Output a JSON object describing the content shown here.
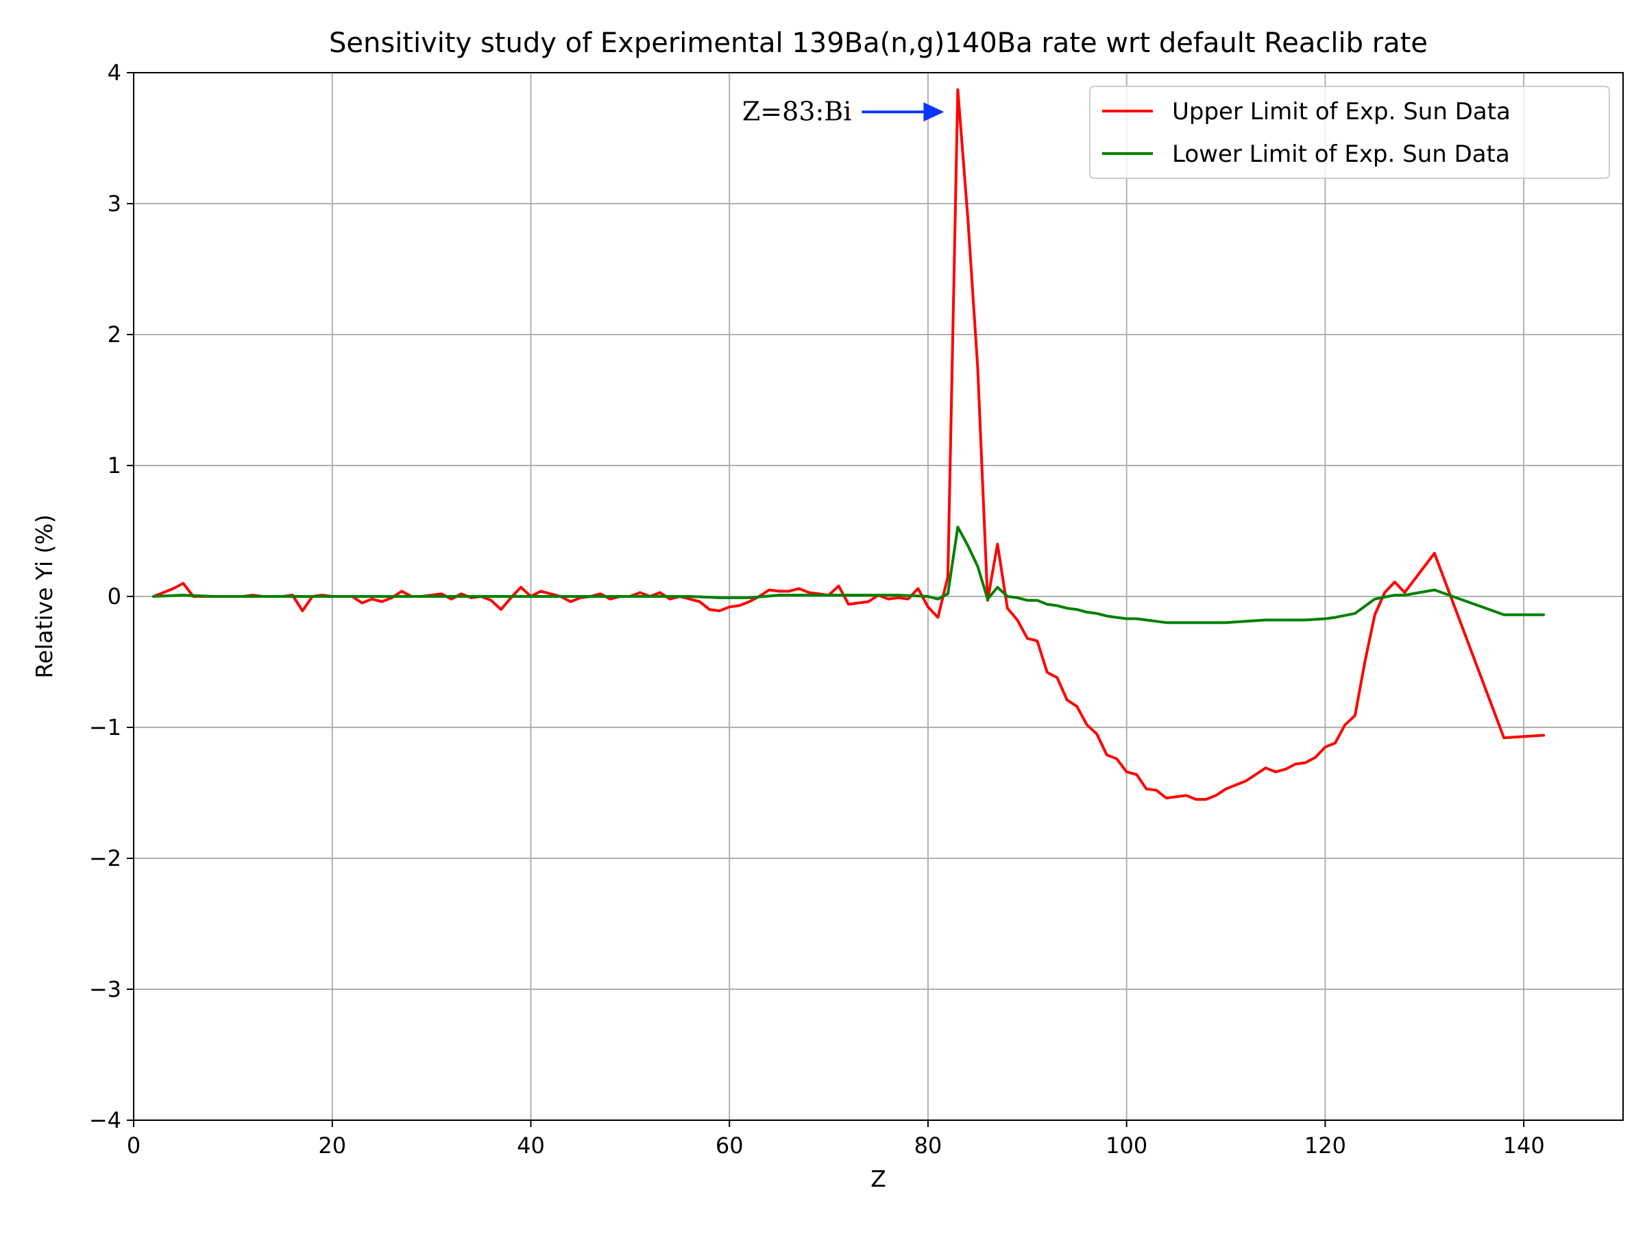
{
  "chart_data": {
    "type": "line",
    "title": "Sensitivity study of Experimental 139Ba(n,g)140Ba rate wrt default Reaclib rate",
    "xlabel": "Z",
    "ylabel": "Relative Yi (%)",
    "xlim": [
      0,
      150
    ],
    "ylim": [
      -4,
      4
    ],
    "xticks": [
      "0",
      "20",
      "40",
      "60",
      "80",
      "100",
      "120",
      "140"
    ],
    "yticks": [
      "4",
      "3",
      "2",
      "1",
      "0",
      "−1",
      "−2",
      "−3",
      "−4"
    ],
    "xtick_values": [
      0,
      20,
      40,
      60,
      80,
      100,
      120,
      140
    ],
    "ytick_values": [
      4,
      3,
      2,
      1,
      0,
      -1,
      -2,
      -3,
      -4
    ],
    "grid": true,
    "legend_position": "top-right",
    "annotation": {
      "text": "Z=83:Bi",
      "target": [
        83,
        3.7
      ],
      "arrow_color": "#0a37ff"
    },
    "series": [
      {
        "name": "Upper Limit of Exp. Sun Data",
        "color": "#ff0000",
        "x": [
          2,
          3,
          4,
          5,
          6,
          7,
          8,
          9,
          10,
          11,
          12,
          13,
          14,
          15,
          16,
          17,
          18,
          19,
          20,
          21,
          22,
          23,
          24,
          25,
          26,
          27,
          28,
          29,
          30,
          31,
          32,
          33,
          34,
          35,
          36,
          37,
          38,
          39,
          40,
          41,
          42,
          43,
          44,
          45,
          46,
          47,
          48,
          49,
          50,
          51,
          52,
          53,
          54,
          55,
          56,
          57,
          58,
          59,
          60,
          61,
          62,
          63,
          64,
          65,
          66,
          67,
          68,
          69,
          70,
          71,
          72,
          73,
          74,
          75,
          76,
          77,
          78,
          79,
          80,
          81,
          82,
          83,
          84,
          85,
          86,
          87,
          88,
          89,
          90,
          91,
          92,
          93,
          94,
          95,
          96,
          97,
          98,
          99,
          100,
          101,
          102,
          103,
          104,
          105,
          106,
          107,
          108,
          109,
          110,
          111,
          112,
          113,
          114,
          115,
          116,
          117,
          118,
          119,
          120,
          121,
          122,
          123,
          124,
          125,
          126,
          127,
          128,
          131,
          138,
          140,
          142
        ],
        "y": [
          0,
          0.03,
          0.06,
          0.1,
          0,
          0,
          0,
          0,
          0,
          0,
          0.01,
          0,
          0,
          0,
          0.01,
          -0.11,
          0,
          0.01,
          0,
          0,
          0,
          -0.05,
          -0.02,
          -0.04,
          -0.01,
          0.04,
          0,
          0,
          0.01,
          0.02,
          -0.02,
          0.02,
          -0.01,
          0,
          -0.03,
          -0.1,
          -0.01,
          0.07,
          0,
          0.04,
          0.02,
          0,
          -0.04,
          -0.01,
          0,
          0.02,
          -0.02,
          0,
          0,
          0.03,
          0,
          0.03,
          -0.02,
          0,
          -0.02,
          -0.04,
          -0.1,
          -0.11,
          -0.08,
          -0.07,
          -0.04,
          0,
          0.05,
          0.04,
          0.04,
          0.06,
          0.03,
          0.02,
          0.01,
          0.08,
          -0.06,
          -0.05,
          -0.04,
          0.01,
          -0.02,
          -0.01,
          -0.02,
          0.06,
          -0.08,
          -0.16,
          0.15,
          3.87,
          2.9,
          1.75,
          -0.03,
          0.4,
          -0.09,
          -0.18,
          -0.32,
          -0.34,
          -0.58,
          -0.62,
          -0.79,
          -0.84,
          -0.98,
          -1.05,
          -1.21,
          -1.24,
          -1.34,
          -1.36,
          -1.47,
          -1.48,
          -1.54,
          -1.53,
          -1.52,
          -1.55,
          -1.55,
          -1.52,
          -1.47,
          -1.44,
          -1.41,
          -1.36,
          -1.31,
          -1.34,
          -1.32,
          -1.28,
          -1.27,
          -1.23,
          -1.15,
          -1.12,
          -0.98,
          -0.91,
          -0.5,
          -0.14,
          0.03,
          0.11,
          0.03,
          0.33,
          -1.08,
          -1.07,
          -1.06
        ]
      },
      {
        "name": "Lower Limit of Exp. Sun Data",
        "color": "#008000",
        "x": [
          2,
          5,
          8,
          11,
          14,
          17,
          20,
          23,
          26,
          29,
          32,
          35,
          38,
          41,
          44,
          47,
          50,
          53,
          56,
          59,
          62,
          65,
          68,
          71,
          74,
          77,
          80,
          81,
          82,
          83,
          84,
          85,
          86,
          87,
          88,
          89,
          90,
          91,
          92,
          93,
          94,
          95,
          96,
          97,
          98,
          99,
          100,
          101,
          102,
          103,
          104,
          106,
          108,
          110,
          112,
          114,
          116,
          118,
          120,
          121,
          123,
          125,
          127,
          128,
          131,
          138,
          142
        ],
        "y": [
          0,
          0.01,
          0,
          0,
          0,
          0,
          0,
          0,
          0,
          0,
          0,
          0,
          0,
          0,
          0,
          0,
          0,
          0,
          0,
          -0.01,
          -0.01,
          0.01,
          0.01,
          0.01,
          0.01,
          0.01,
          0,
          -0.02,
          0.02,
          0.53,
          0.39,
          0.23,
          -0.02,
          0.07,
          0,
          -0.01,
          -0.03,
          -0.03,
          -0.06,
          -0.07,
          -0.09,
          -0.1,
          -0.12,
          -0.13,
          -0.15,
          -0.16,
          -0.17,
          -0.17,
          -0.18,
          -0.19,
          -0.2,
          -0.2,
          -0.2,
          -0.2,
          -0.19,
          -0.18,
          -0.18,
          -0.18,
          -0.17,
          -0.16,
          -0.13,
          -0.02,
          0.01,
          0.01,
          0.05,
          -0.14,
          -0.14
        ]
      }
    ]
  }
}
